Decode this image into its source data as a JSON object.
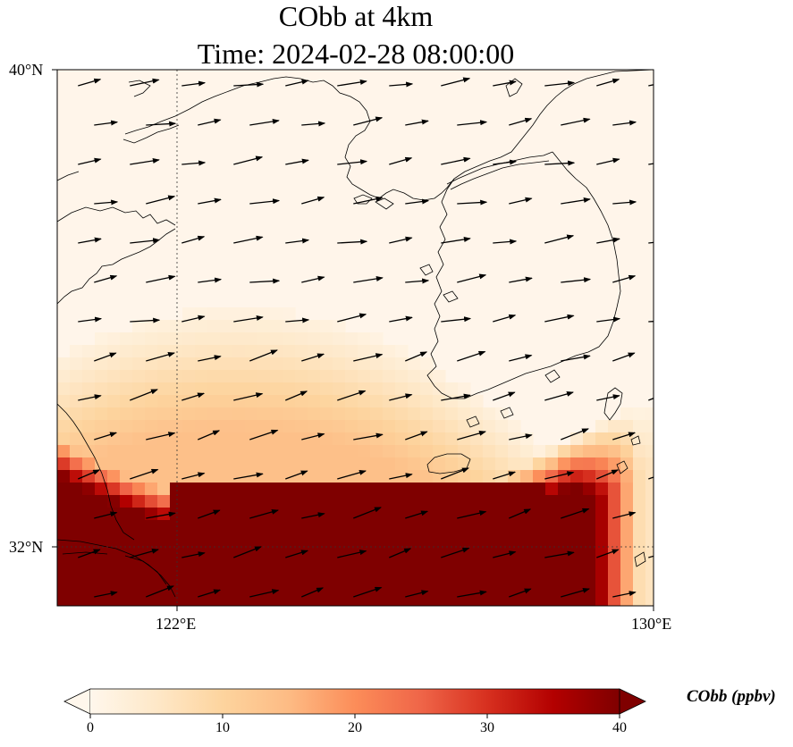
{
  "title": {
    "line1": "CObb at 4km",
    "line2": "Time: 2024-02-28 08:00:00"
  },
  "map": {
    "extent": {
      "lon_min": 119.0,
      "lon_max": 130.0,
      "lat_min": 31.0,
      "lat_max": 40.0
    },
    "lat_ticks": [
      {
        "value": 40,
        "label": "40°N"
      },
      {
        "value": 32,
        "label": "32°N"
      }
    ],
    "lon_ticks": [
      {
        "value": 122,
        "label": "122°E"
      },
      {
        "value": 130,
        "label": "130°E"
      }
    ],
    "gridlines": "dotted at 122°E and 32°N",
    "field": "CObb concentration (ppbv), high in south-central band, near zero north",
    "wind_vectors": "arrows pointing mostly east-northeast"
  },
  "colorbar": {
    "label": "CObb (ppbv)",
    "min": 0,
    "max": 40,
    "ticks": [
      "0",
      "10",
      "20",
      "30",
      "40"
    ],
    "tick_values": [
      0,
      10,
      20,
      30,
      40
    ],
    "extend": "both",
    "colormap": "OrRd",
    "colors": [
      "#fff7ec",
      "#fee8c8",
      "#fdd49e",
      "#fdbb84",
      "#fc8d59",
      "#ef6548",
      "#d7301f",
      "#b30000",
      "#7f0000"
    ]
  }
}
